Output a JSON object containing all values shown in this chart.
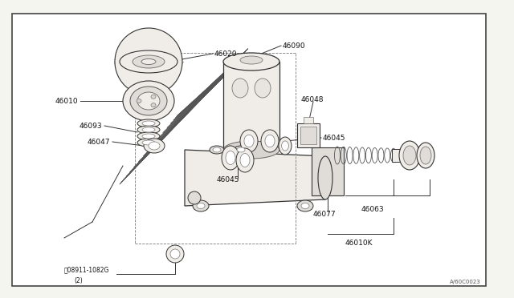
{
  "bg_color": "#f5f5f0",
  "border_color": "#555555",
  "line_color": "#333333",
  "part_fill": "#f0ede8",
  "part_edge": "#333333",
  "label_color": "#111111",
  "label_fontsize": 6.5,
  "diagram_code": "A/60C0023",
  "figure_width": 6.4,
  "figure_height": 3.72
}
